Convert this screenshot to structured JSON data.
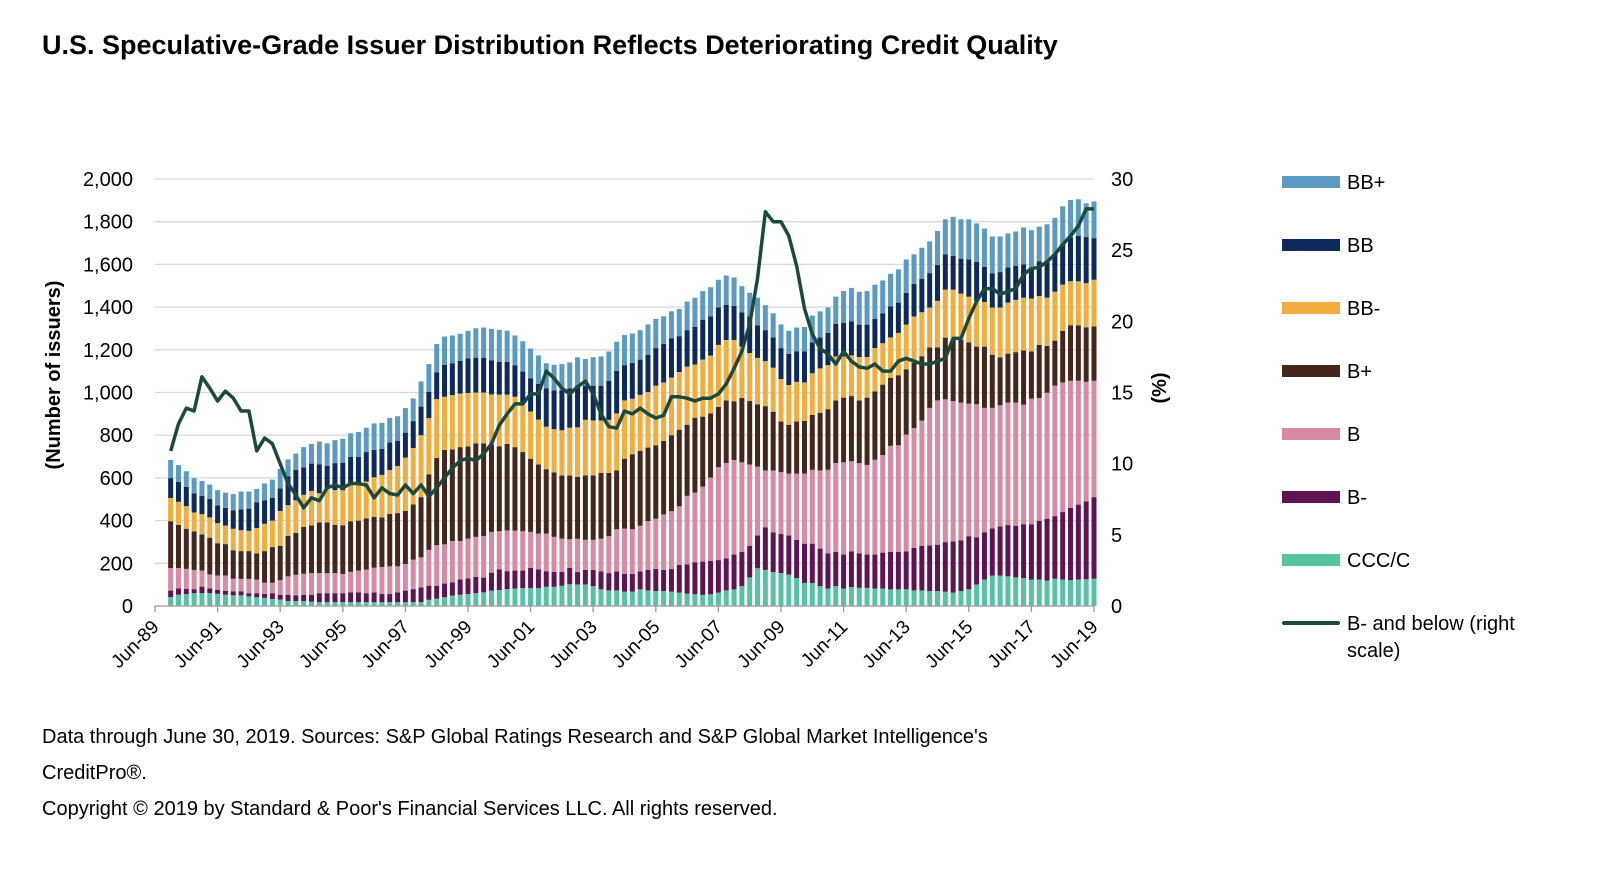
{
  "title": "U.S. Speculative-Grade Issuer Distribution Reflects Deteriorating Credit Quality",
  "footer": {
    "line1": "Data through June 30, 2019. Sources: S&P Global Ratings Research and S&P Global Market Intelligence's",
    "line2": "CreditPro®.",
    "line3": "Copyright © 2019 by Standard & Poor's Financial Services LLC. All rights reserved."
  },
  "chart_data": {
    "type": "bar",
    "stacked": true,
    "title": "U.S. Speculative-Grade Issuer Distribution Reflects Deteriorating Credit Quality",
    "ylabel": "(Number of issuers)",
    "y2label": "(%)",
    "xlabel": "",
    "ylim": [
      0,
      2000
    ],
    "y2lim": [
      0,
      30
    ],
    "yticks": [
      "0",
      "200",
      "400",
      "600",
      "800",
      "1,000",
      "1,200",
      "1,400",
      "1,600",
      "1,800",
      "2,000"
    ],
    "y2ticks": [
      "0",
      "5",
      "10",
      "15",
      "20",
      "25",
      "30"
    ],
    "xticks": [
      "Jun-89",
      "Jun-91",
      "Jun-93",
      "Jun-95",
      "Jun-97",
      "Jun-99",
      "Jun-01",
      "Jun-03",
      "Jun-05",
      "Jun-07",
      "Jun-09",
      "Jun-11",
      "Jun-13",
      "Jun-15",
      "Jun-17",
      "Jun-19"
    ],
    "grid": true,
    "legend_position": "right",
    "categories": [
      "Dec-89",
      "Mar-90",
      "Jun-90",
      "Sep-90",
      "Dec-90",
      "Mar-91",
      "Jun-91",
      "Sep-91",
      "Dec-91",
      "Mar-92",
      "Jun-92",
      "Sep-92",
      "Dec-92",
      "Mar-93",
      "Jun-93",
      "Sep-93",
      "Dec-93",
      "Mar-94",
      "Jun-94",
      "Sep-94",
      "Dec-94",
      "Mar-95",
      "Jun-95",
      "Sep-95",
      "Dec-95",
      "Mar-96",
      "Jun-96",
      "Sep-96",
      "Dec-96",
      "Mar-97",
      "Jun-97",
      "Sep-97",
      "Dec-97",
      "Mar-98",
      "Jun-98",
      "Sep-98",
      "Dec-98",
      "Mar-99",
      "Jun-99",
      "Sep-99",
      "Dec-99",
      "Mar-00",
      "Jun-00",
      "Sep-00",
      "Dec-00",
      "Mar-01",
      "Jun-01",
      "Sep-01",
      "Dec-01",
      "Mar-02",
      "Jun-02",
      "Sep-02",
      "Dec-02",
      "Mar-03",
      "Jun-03",
      "Sep-03",
      "Dec-03",
      "Mar-04",
      "Jun-04",
      "Sep-04",
      "Dec-04",
      "Mar-05",
      "Jun-05",
      "Sep-05",
      "Dec-05",
      "Mar-06",
      "Jun-06",
      "Sep-06",
      "Dec-06",
      "Mar-07",
      "Jun-07",
      "Sep-07",
      "Dec-07",
      "Mar-08",
      "Jun-08",
      "Sep-08",
      "Dec-08",
      "Mar-09",
      "Jun-09",
      "Sep-09",
      "Dec-09",
      "Mar-10",
      "Jun-10",
      "Sep-10",
      "Dec-10",
      "Mar-11",
      "Jun-11",
      "Sep-11",
      "Dec-11",
      "Mar-12",
      "Jun-12",
      "Sep-12",
      "Dec-12",
      "Mar-13",
      "Jun-13",
      "Sep-13",
      "Dec-13",
      "Mar-14",
      "Jun-14",
      "Sep-14",
      "Dec-14",
      "Mar-15",
      "Jun-15",
      "Sep-15",
      "Dec-15",
      "Mar-16",
      "Jun-16",
      "Sep-16",
      "Dec-16",
      "Mar-17",
      "Jun-17",
      "Sep-17",
      "Dec-17",
      "Mar-18",
      "Jun-18",
      "Sep-18",
      "Dec-18",
      "Mar-19",
      "Jun-19"
    ],
    "series": [
      {
        "name": "CCC/C",
        "color": "#56c1a3",
        "values": [
          42,
          53,
          56,
          60,
          60,
          60,
          57,
          53,
          50,
          50,
          45,
          41,
          38,
          33,
          30,
          23,
          23,
          23,
          20,
          18,
          18,
          18,
          18,
          18,
          18,
          18,
          18,
          18,
          18,
          18,
          18,
          18,
          18,
          29,
          34,
          41,
          49,
          53,
          56,
          60,
          64,
          72,
          75,
          79,
          82,
          84,
          84,
          84,
          90,
          90,
          95,
          102,
          101,
          101,
          93,
          78,
          73,
          73,
          67,
          67,
          78,
          73,
          70,
          70,
          67,
          63,
          58,
          55,
          52,
          55,
          63,
          73,
          78,
          93,
          134,
          177,
          169,
          159,
          154,
          147,
          131,
          108,
          108,
          93,
          82,
          93,
          82,
          89,
          85,
          85,
          82,
          82,
          78,
          78,
          78,
          73,
          73,
          70,
          70,
          67,
          63,
          70,
          78,
          101,
          124,
          142,
          142,
          139,
          134,
          131,
          124,
          124,
          119,
          128,
          124,
          121,
          124,
          125,
          128
        ]
      },
      {
        "name": "B-",
        "color": "#5e1353",
        "values": [
          30,
          30,
          24,
          19,
          31,
          23,
          18,
          18,
          18,
          18,
          15,
          19,
          19,
          27,
          23,
          30,
          27,
          30,
          33,
          42,
          42,
          42,
          42,
          46,
          46,
          42,
          46,
          38,
          38,
          46,
          54,
          61,
          69,
          66,
          61,
          64,
          61,
          72,
          74,
          76,
          69,
          84,
          96,
          84,
          84,
          82,
          95,
          87,
          73,
          70,
          65,
          77,
          58,
          68,
          76,
          84,
          81,
          89,
          83,
          83,
          84,
          96,
          103,
          99,
          106,
          129,
          137,
          150,
          156,
          156,
          152,
          150,
          163,
          160,
          147,
          153,
          199,
          186,
          183,
          183,
          179,
          184,
          184,
          176,
          164,
          160,
          159,
          167,
          161,
          156,
          159,
          168,
          175,
          175,
          178,
          199,
          208,
          214,
          217,
          232,
          239,
          237,
          249,
          221,
          221,
          221,
          231,
          240,
          242,
          252,
          259,
          275,
          290,
          293,
          316,
          339,
          351,
          365,
          382
        ]
      },
      {
        "name": "B",
        "color": "#d68aa3",
        "values": [
          106,
          95,
          94,
          90,
          75,
          65,
          68,
          72,
          60,
          59,
          67,
          64,
          52,
          49,
          68,
          86,
          96,
          98,
          101,
          94,
          94,
          94,
          90,
          96,
          102,
          111,
          115,
          127,
          130,
          122,
          125,
          138,
          141,
          168,
          190,
          184,
          194,
          179,
          186,
          188,
          195,
          191,
          179,
          191,
          187,
          184,
          168,
          168,
          176,
          164,
          156,
          134,
          156,
          141,
          141,
          153,
          173,
          198,
          213,
          210,
          214,
          229,
          236,
          260,
          271,
          275,
          321,
          326,
          351,
          391,
          435,
          447,
          443,
          420,
          382,
          323,
          267,
          290,
          290,
          290,
          310,
          328,
          346,
          366,
          392,
          417,
          432,
          422,
          423,
          420,
          444,
          457,
          497,
          500,
          547,
          562,
          587,
          644,
          676,
          669,
          658,
          646,
          621,
          623,
          583,
          565,
          567,
          574,
          577,
          560,
          588,
          575,
          590,
          611,
          607,
          595,
          580,
          560,
          545
        ]
      },
      {
        "name": "B+",
        "color": "#44261a",
        "values": [
          219,
          202,
          188,
          181,
          169,
          172,
          151,
          147,
          133,
          130,
          130,
          122,
          148,
          167,
          161,
          190,
          197,
          219,
          223,
          238,
          238,
          226,
          228,
          237,
          234,
          240,
          239,
          232,
          245,
          249,
          249,
          259,
          282,
          354,
          408,
          442,
          429,
          440,
          431,
          438,
          434,
          409,
          398,
          405,
          391,
          371,
          343,
          324,
          302,
          302,
          295,
          298,
          290,
          302,
          302,
          308,
          296,
          275,
          327,
          351,
          351,
          344,
          344,
          344,
          356,
          359,
          333,
          351,
          328,
          300,
          283,
          293,
          275,
          301,
          297,
          292,
          301,
          275,
          237,
          229,
          244,
          247,
          257,
          270,
          284,
          293,
          303,
          305,
          294,
          315,
          320,
          330,
          318,
          328,
          306,
          305,
          302,
          283,
          248,
          289,
          289,
          293,
          287,
          270,
          287,
          249,
          225,
          229,
          236,
          254,
          221,
          249,
          219,
          211,
          242,
          260,
          260,
          255,
          255
        ]
      },
      {
        "name": "BB-",
        "color": "#f3ad3e",
        "values": [
          109,
          108,
          106,
          88,
          95,
          95,
          94,
          87,
          101,
          98,
          95,
          119,
          128,
          124,
          163,
          143,
          152,
          151,
          162,
          136,
          159,
          163,
          164,
          171,
          176,
          172,
          185,
          199,
          206,
          221,
          249,
          264,
          290,
          263,
          276,
          249,
          255,
          251,
          251,
          238,
          238,
          235,
          242,
          231,
          236,
          229,
          221,
          210,
          199,
          202,
          212,
          224,
          232,
          260,
          257,
          246,
          249,
          267,
          273,
          260,
          262,
          260,
          279,
          274,
          270,
          270,
          272,
          249,
          267,
          271,
          290,
          283,
          287,
          241,
          225,
          217,
          211,
          206,
          199,
          186,
          186,
          180,
          195,
          208,
          206,
          206,
          193,
          191,
          203,
          190,
          203,
          194,
          190,
          198,
          209,
          217,
          206,
          187,
          218,
          225,
          233,
          217,
          214,
          214,
          209,
          221,
          233,
          239,
          245,
          247,
          248,
          229,
          226,
          229,
          216,
          206,
          206,
          207,
          218
        ]
      },
      {
        "name": "BB",
        "color": "#0e2a5c",
        "values": [
          93,
          93,
          90,
          90,
          86,
          86,
          83,
          83,
          86,
          98,
          104,
          121,
          110,
          106,
          106,
          136,
          143,
          128,
          128,
          136,
          106,
          126,
          128,
          130,
          122,
          138,
          128,
          122,
          129,
          118,
          117,
          126,
          134,
          123,
          126,
          150,
          148,
          153,
          162,
          163,
          163,
          160,
          154,
          154,
          148,
          148,
          156,
          167,
          180,
          182,
          187,
          185,
          195,
          160,
          163,
          163,
          183,
          199,
          165,
          168,
          165,
          175,
          176,
          181,
          184,
          168,
          171,
          176,
          187,
          183,
          176,
          165,
          160,
          161,
          171,
          153,
          145,
          142,
          145,
          146,
          143,
          146,
          144,
          145,
          151,
          153,
          158,
          160,
          152,
          152,
          137,
          140,
          145,
          142,
          149,
          152,
          157,
          161,
          168,
          165,
          158,
          164,
          174,
          183,
          165,
          161,
          166,
          165,
          160,
          156,
          146,
          163,
          171,
          178,
          191,
          206,
          213,
          216,
          195
        ]
      },
      {
        "name": "BB+",
        "color": "#5b9bc3",
        "values": [
          85,
          79,
          73,
          71,
          70,
          68,
          72,
          71,
          76,
          83,
          80,
          62,
          79,
          86,
          91,
          79,
          76,
          95,
          92,
          106,
          105,
          108,
          113,
          111,
          117,
          114,
          124,
          122,
          115,
          115,
          115,
          106,
          118,
          130,
          132,
          132,
          131,
          127,
          129,
          138,
          141,
          147,
          149,
          146,
          139,
          142,
          139,
          134,
          117,
          120,
          123,
          121,
          133,
          125,
          133,
          137,
          137,
          137,
          141,
          137,
          138,
          142,
          137,
          129,
          126,
          127,
          134,
          137,
          134,
          137,
          129,
          137,
          133,
          122,
          111,
          129,
          117,
          113,
          111,
          108,
          111,
          114,
          126,
          122,
          119,
          127,
          148,
          156,
          154,
          157,
          160,
          154,
          153,
          156,
          156,
          139,
          145,
          149,
          160,
          164,
          183,
          184,
          188,
          180,
          179,
          172,
          167,
          159,
          160,
          173,
          174,
          162,
          173,
          168,
          176,
          175,
          171,
          158,
          172
        ]
      }
    ],
    "line_series": {
      "name": "B- and below (right scale)",
      "color": "#1b4a3c",
      "axis": "right",
      "values": [
        10.9,
        12.8,
        13.9,
        13.7,
        16.1,
        15.3,
        14.4,
        15.1,
        14.6,
        13.7,
        13.7,
        10.9,
        11.8,
        11.4,
        10.0,
        8.6,
        7.8,
        6.9,
        7.6,
        7.4,
        8.3,
        8.5,
        8.3,
        8.6,
        8.6,
        8.5,
        7.6,
        8.3,
        7.9,
        7.8,
        8.5,
        7.9,
        8.5,
        7.7,
        8.3,
        9.0,
        9.7,
        10.2,
        10.4,
        10.2,
        10.7,
        11.4,
        12.7,
        13.5,
        14.2,
        14.2,
        14.9,
        14.9,
        16.5,
        16.0,
        15.3,
        14.9,
        15.4,
        15.8,
        14.9,
        13.5,
        12.6,
        12.5,
        13.7,
        13.5,
        13.9,
        13.5,
        13.2,
        13.4,
        14.7,
        14.7,
        14.6,
        14.4,
        14.6,
        14.6,
        14.9,
        15.6,
        16.7,
        17.9,
        19.8,
        23.0,
        27.7,
        27.0,
        27.0,
        26.0,
        23.9,
        20.9,
        19.1,
        18.1,
        17.7,
        17.0,
        17.9,
        17.2,
        16.8,
        16.7,
        17.0,
        16.5,
        16.5,
        17.2,
        17.4,
        17.2,
        17.0,
        17.0,
        17.2,
        17.4,
        18.8,
        18.8,
        20.2,
        21.4,
        22.3,
        22.3,
        21.9,
        22.1,
        22.3,
        23.3,
        23.7,
        23.8,
        24.2,
        24.7,
        25.4,
        26.0,
        26.7,
        27.9,
        27.9
      ]
    }
  },
  "legend": [
    {
      "label": "BB+",
      "color": "#5b9bc3",
      "kind": "bar"
    },
    {
      "label": "BB",
      "color": "#0e2a5c",
      "kind": "bar"
    },
    {
      "label": "BB-",
      "color": "#f3ad3e",
      "kind": "bar"
    },
    {
      "label": "B+",
      "color": "#44261a",
      "kind": "bar"
    },
    {
      "label": "B",
      "color": "#d68aa3",
      "kind": "bar"
    },
    {
      "label": "B-",
      "color": "#5e1353",
      "kind": "bar"
    },
    {
      "label": "CCC/C",
      "color": "#56c1a3",
      "kind": "bar"
    },
    {
      "label": "B- and below (right scale)",
      "color": "#1b4a3c",
      "kind": "line"
    }
  ]
}
